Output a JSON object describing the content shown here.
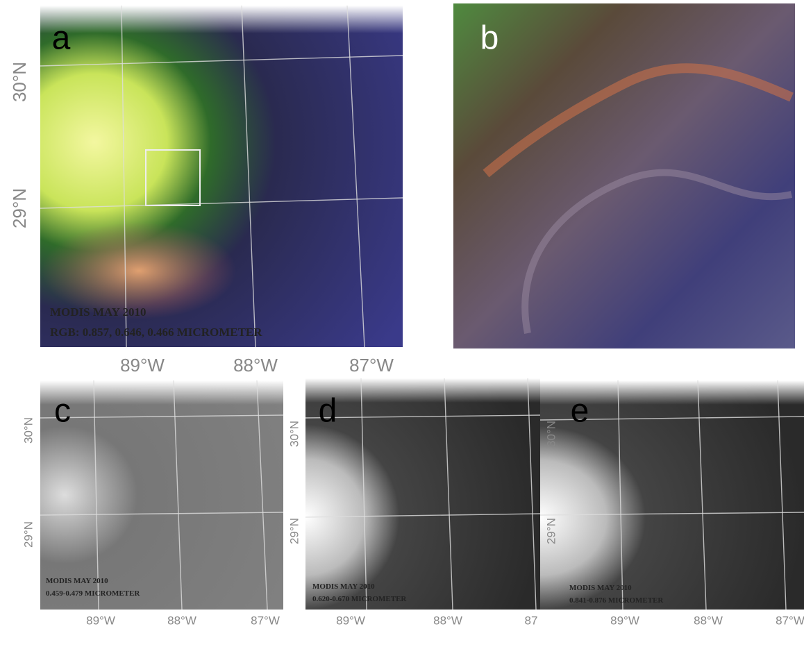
{
  "panels": [
    {
      "label": "a",
      "lat_labels": [
        "30°N",
        "29°N"
      ],
      "lon_labels": [
        "89°W",
        "88°W",
        "87°W"
      ],
      "caption": [
        "MODIS MAY 2010",
        "RGB: 0.857, 0.646, 0.466 MICROMETER"
      ]
    },
    {
      "label": "b"
    },
    {
      "label": "c",
      "lat_labels": [
        "30°N",
        "29°N"
      ],
      "lon_labels": [
        "89°W",
        "88°W",
        "87°W"
      ],
      "caption": [
        "MODIS MAY 2010",
        "0.459-0.479 MICROMETER"
      ]
    },
    {
      "label": "d",
      "lat_labels": [
        "30°N",
        "29°N"
      ],
      "lon_labels": [
        "89°W",
        "88°W",
        "87"
      ],
      "caption": [
        "MODIS MAY 2010",
        "0.620-0.670 MICROMETER"
      ]
    },
    {
      "label": "e",
      "lat_labels": [
        "30°N",
        "29°N"
      ],
      "lon_labels": [
        "89°W",
        "88°W",
        "87°W"
      ],
      "caption": [
        "MODIS MAY 2010",
        "0.841-0.876 MICROMETER"
      ]
    }
  ]
}
